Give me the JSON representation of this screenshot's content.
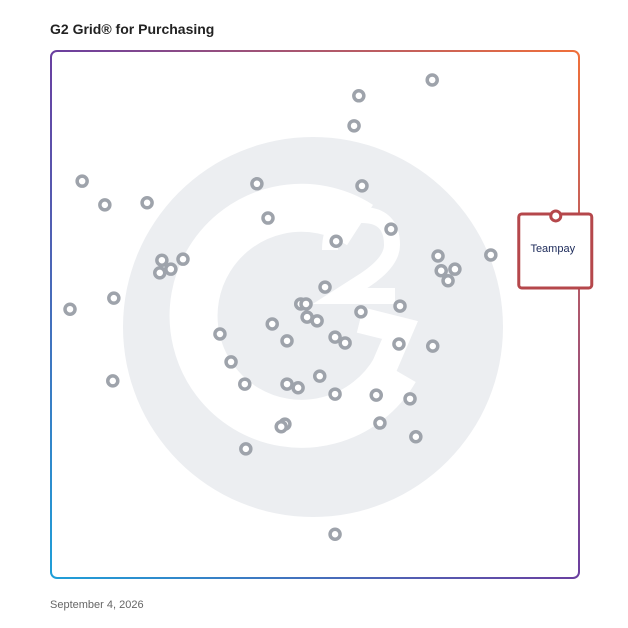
{
  "chart_data": {
    "type": "scatter",
    "title": "G2 Grid® for Purchasing",
    "date": "September 4, 2026",
    "xlim": [
      0,
      100
    ],
    "ylim": [
      0,
      100
    ],
    "series": [
      {
        "color": "#9ea3ab",
        "x": [
          72.2,
          58.3,
          57.4,
          5.9,
          10.2,
          18.2,
          39.0,
          58.9,
          41.1,
          64.4,
          54.0,
          21.0,
          25.0,
          22.7,
          20.6,
          73.3,
          83.3,
          73.9,
          76.5,
          75.2,
          51.9,
          11.9,
          3.6,
          47.3,
          48.3,
          66.1,
          58.7,
          48.5,
          50.4,
          41.9,
          32.0,
          44.7,
          53.8,
          55.7,
          65.9,
          72.3,
          34.1,
          50.9,
          36.7,
          44.7,
          46.8,
          53.8,
          61.6,
          68.0,
          11.7,
          44.3,
          43.6,
          62.3,
          69.1,
          36.9,
          53.8
        ],
        "y": [
          94.5,
          91.5,
          85.8,
          75.3,
          70.8,
          71.2,
          74.8,
          74.4,
          68.3,
          66.2,
          63.9,
          60.3,
          60.5,
          58.6,
          57.9,
          61.1,
          61.3,
          58.3,
          58.6,
          56.4,
          55.2,
          53.1,
          51.0,
          52.0,
          52.0,
          51.6,
          50.5,
          49.5,
          48.8,
          48.2,
          46.3,
          45.0,
          45.7,
          44.6,
          44.4,
          44.0,
          41.0,
          38.3,
          36.8,
          36.8,
          36.1,
          34.9,
          34.7,
          34.0,
          37.4,
          29.2,
          28.7,
          29.4,
          26.8,
          24.5,
          8.3
        ]
      }
    ],
    "highlight": {
      "label": "Teampay",
      "x": 95.6,
      "y": 68.7,
      "color": "#b5474b"
    }
  }
}
